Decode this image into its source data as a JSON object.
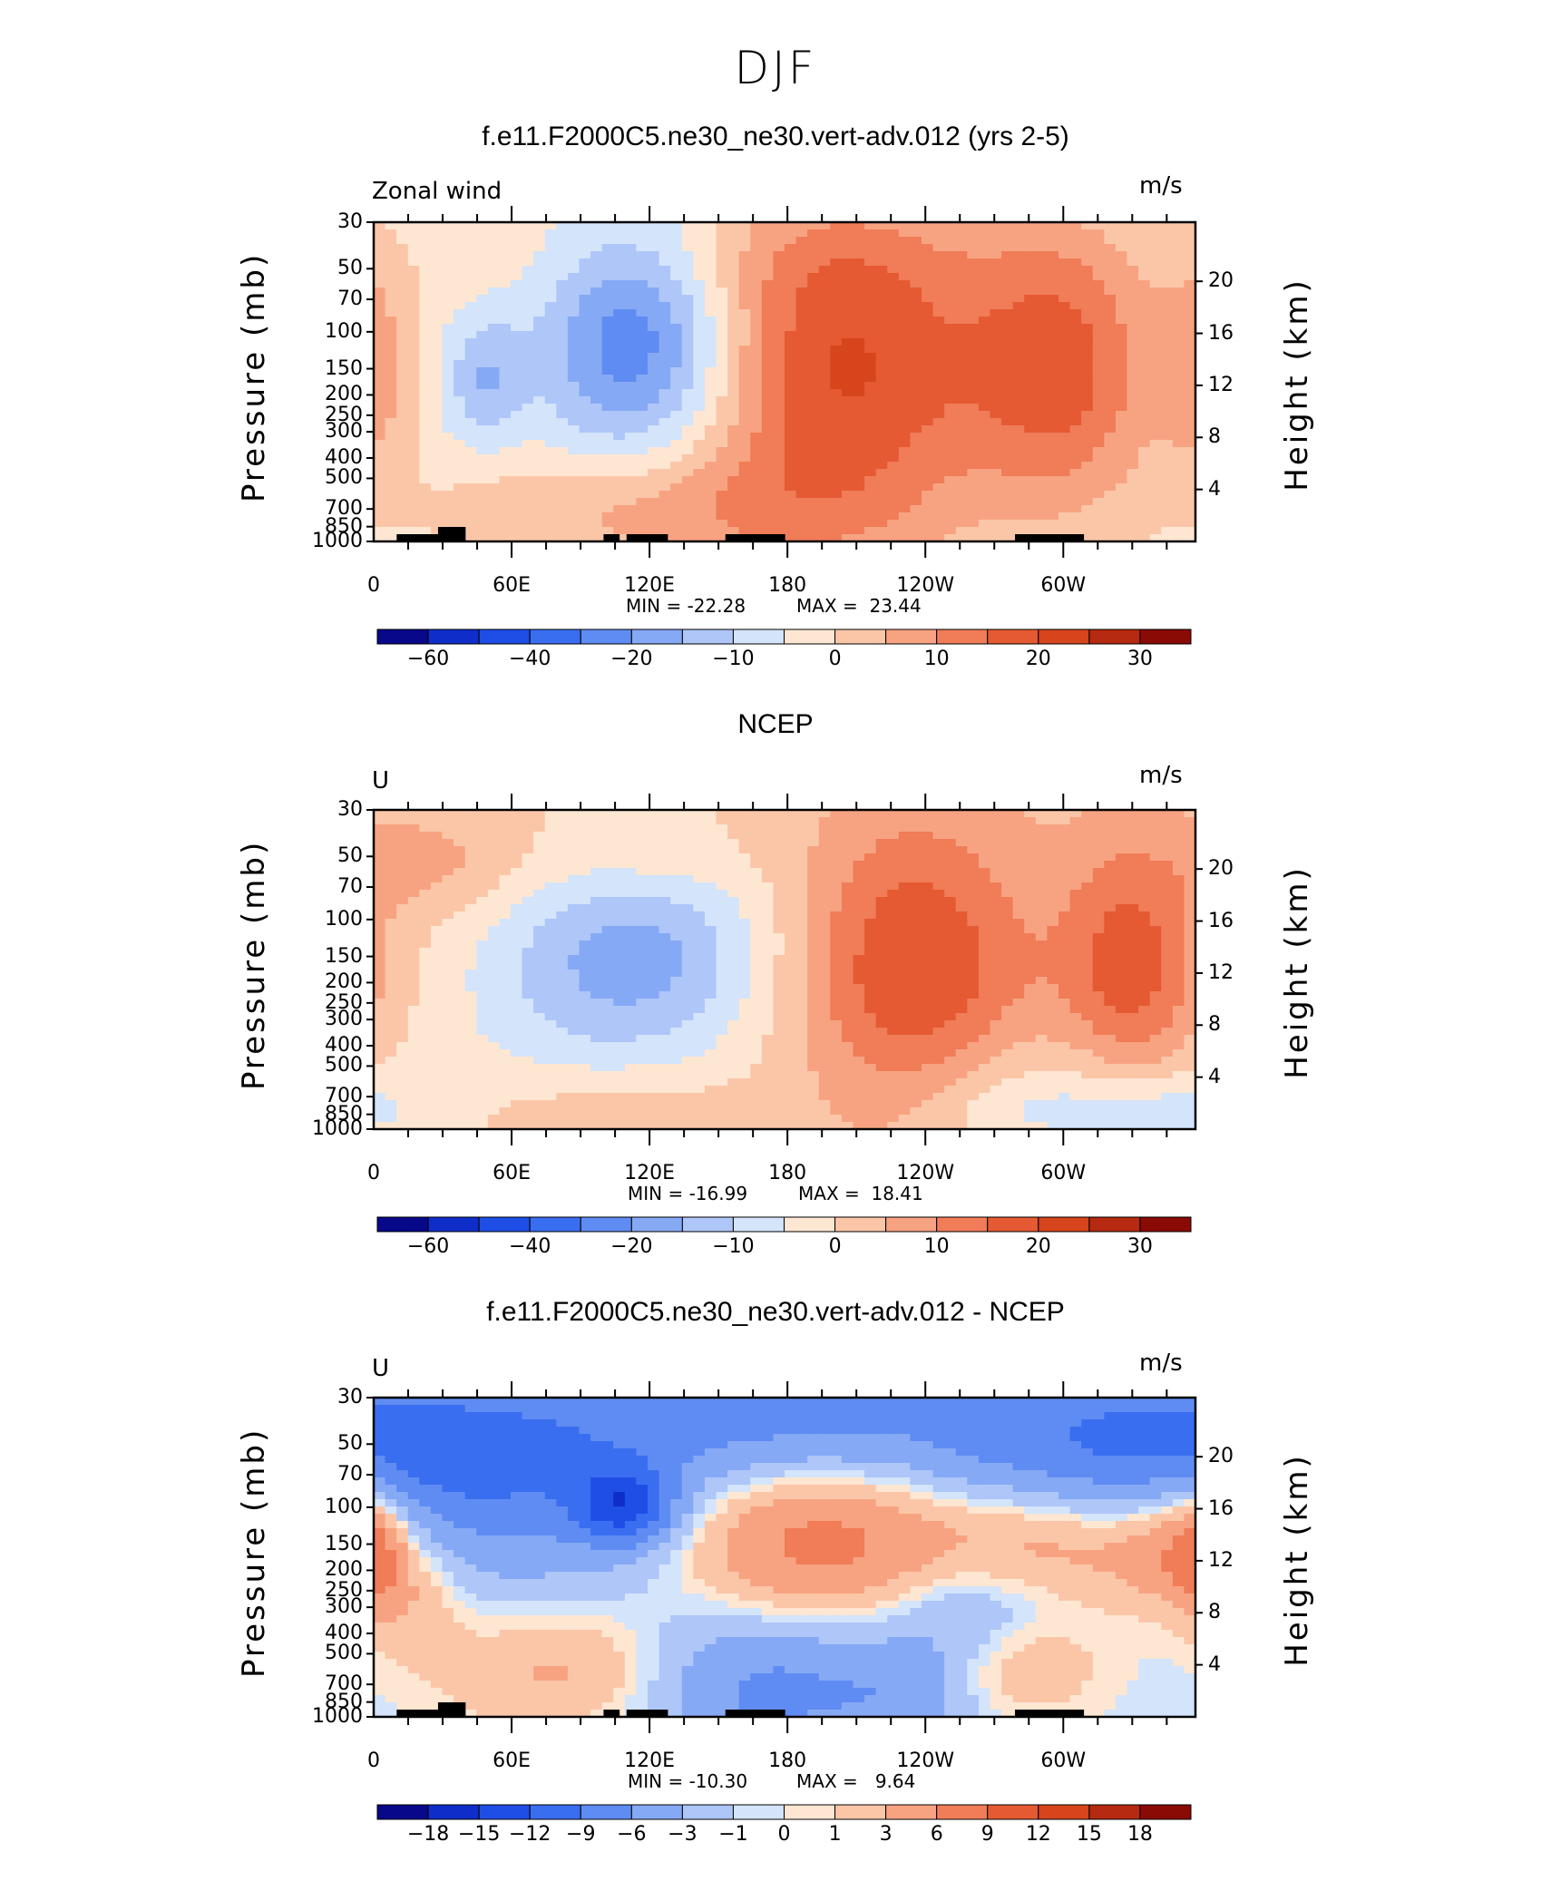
{
  "figure": {
    "title": "DJF",
    "colors": {
      "frame": "#000000",
      "land": "#000000"
    }
  },
  "chart_data": [
    {
      "type": "heatmap",
      "title": "f.e11.F2000C5.ne30_ne30.vert-adv.012 (yrs 2-5)",
      "left_label": "Zonal wind",
      "units": "m/s",
      "ylabel": "Pressure (mb)",
      "ylabel_right": "Height (km)",
      "xlim": [
        0,
        357.5
      ],
      "xticks": [
        {
          "lon": 0,
          "label": "0"
        },
        {
          "lon": 60,
          "label": "60E"
        },
        {
          "lon": 120,
          "label": "120E"
        },
        {
          "lon": 180,
          "label": "180"
        },
        {
          "lon": 240,
          "label": "120W"
        },
        {
          "lon": 300,
          "label": "60W"
        }
      ],
      "yticks": [
        "30",
        "50",
        "70",
        "100",
        "150",
        "200",
        "250",
        "300",
        "400",
        "500",
        "700",
        "850",
        "1000"
      ],
      "right_ticks": [
        "20",
        "16",
        "12",
        "8",
        "4"
      ],
      "min_label": "MIN = -22.28",
      "max_label": "MAX =  23.44",
      "min": -22.28,
      "max": 23.44,
      "colorbar": {
        "levels": [
          -70,
          -60,
          -50,
          -40,
          -30,
          -20,
          -15,
          -10,
          -5,
          0,
          5,
          10,
          15,
          20,
          25,
          30
        ],
        "labels": [
          "-60",
          "-40",
          "-20",
          "-10",
          "0",
          "10",
          "20",
          "30"
        ],
        "colors": [
          "#08088a",
          "#0f2ec9",
          "#1f4ee6",
          "#3a6ef0",
          "#5f8cf2",
          "#86a9f5",
          "#aec6f8",
          "#d3e4fb",
          "#fde6d2",
          "#fbc6a8",
          "#f7a381",
          "#f07c58",
          "#e55a32",
          "#d6451c",
          "#b52a10",
          "#8a0a06"
        ]
      },
      "background": -3,
      "features": [
        {
          "lon": 205,
          "p": 150,
          "w": 45,
          "h": 1.3,
          "amp": 23.44
        },
        {
          "lon": 300,
          "p": 150,
          "w": 30,
          "h": 1.1,
          "amp": 19.0
        },
        {
          "lon": 0,
          "p": 150,
          "w": 12,
          "h": 0.8,
          "amp": 10.0
        },
        {
          "lon": 115,
          "p": 110,
          "w": 30,
          "h": 0.9,
          "amp": -22.28
        },
        {
          "lon": 48,
          "p": 170,
          "w": 12,
          "h": 0.5,
          "amp": -11.0
        },
        {
          "lon": 100,
          "p": 720,
          "w": 55,
          "h": 0.45,
          "amp": 8.0
        },
        {
          "lon": 150,
          "p": 45,
          "w": 110,
          "h": 0.45,
          "amp": 3.0
        },
        {
          "lon": 175,
          "p": 750,
          "w": 50,
          "h": 0.55,
          "amp": 4.5
        }
      ]
    },
    {
      "type": "heatmap",
      "title": "NCEP",
      "left_label": "U",
      "units": "m/s",
      "ylabel": "Pressure (mb)",
      "ylabel_right": "Height (km)",
      "xlim": [
        0,
        357.5
      ],
      "xticks": [
        {
          "lon": 0,
          "label": "0"
        },
        {
          "lon": 60,
          "label": "60E"
        },
        {
          "lon": 120,
          "label": "120E"
        },
        {
          "lon": 180,
          "label": "180"
        },
        {
          "lon": 240,
          "label": "120W"
        },
        {
          "lon": 300,
          "label": "60W"
        }
      ],
      "yticks": [
        "30",
        "50",
        "70",
        "100",
        "150",
        "200",
        "250",
        "300",
        "400",
        "500",
        "700",
        "850",
        "1000"
      ],
      "right_ticks": [
        "20",
        "16",
        "12",
        "8",
        "4"
      ],
      "min_label": "MIN = -16.99",
      "max_label": "MAX =  18.41",
      "min": -16.99,
      "max": 18.41,
      "colorbar": {
        "levels": [
          -70,
          -60,
          -50,
          -40,
          -30,
          -20,
          -15,
          -10,
          -5,
          0,
          5,
          10,
          15,
          20,
          25,
          30
        ],
        "labels": [
          "-60",
          "-40",
          "-20",
          "-10",
          "0",
          "10",
          "20",
          "30"
        ],
        "colors": [
          "#08088a",
          "#0f2ec9",
          "#1f4ee6",
          "#3a6ef0",
          "#5f8cf2",
          "#86a9f5",
          "#aec6f8",
          "#d3e4fb",
          "#fde6d2",
          "#fbc6a8",
          "#f7a381",
          "#f07c58",
          "#e55a32",
          "#d6451c",
          "#b52a10",
          "#8a0a06"
        ]
      },
      "background": 2,
      "features": [
        {
          "lon": 235,
          "p": 180,
          "w": 35,
          "h": 1.2,
          "amp": 18.41
        },
        {
          "lon": 330,
          "p": 170,
          "w": 22,
          "h": 1.0,
          "amp": 16.0
        },
        {
          "lon": 120,
          "p": 140,
          "w": 40,
          "h": 0.9,
          "amp": -16.99
        },
        {
          "lon": 70,
          "p": 220,
          "w": 40,
          "h": 1.0,
          "amp": -6.0
        },
        {
          "lon": 290,
          "p": 600,
          "w": 60,
          "h": 0.5,
          "amp": -6.0
        },
        {
          "lon": 270,
          "p": 880,
          "w": 30,
          "h": 0.3,
          "amp": -5.0
        },
        {
          "lon": 340,
          "p": 820,
          "w": 30,
          "h": 0.3,
          "amp": -9.0
        },
        {
          "lon": 30,
          "p": 55,
          "w": 28,
          "h": 0.4,
          "amp": 6.0
        },
        {
          "lon": 120,
          "p": 55,
          "w": 30,
          "h": 0.4,
          "amp": 5.0
        },
        {
          "lon": 100,
          "p": 760,
          "w": 40,
          "h": 0.3,
          "amp": 4.0
        }
      ]
    },
    {
      "type": "heatmap",
      "title": "f.e11.F2000C5.ne30_ne30.vert-adv.012 - NCEP",
      "left_label": "U",
      "units": "m/s",
      "ylabel": "Pressure (mb)",
      "ylabel_right": "Height (km)",
      "xlim": [
        0,
        357.5
      ],
      "xticks": [
        {
          "lon": 0,
          "label": "0"
        },
        {
          "lon": 60,
          "label": "60E"
        },
        {
          "lon": 120,
          "label": "120E"
        },
        {
          "lon": 180,
          "label": "180"
        },
        {
          "lon": 240,
          "label": "120W"
        },
        {
          "lon": 300,
          "label": "60W"
        }
      ],
      "yticks": [
        "30",
        "50",
        "70",
        "100",
        "150",
        "200",
        "250",
        "300",
        "400",
        "500",
        "700",
        "850",
        "1000"
      ],
      "right_ticks": [
        "20",
        "16",
        "12",
        "8",
        "4"
      ],
      "min_label": "MIN = -10.30",
      "max_label": "MAX =   9.64",
      "min": -10.3,
      "max": 9.64,
      "colorbar": {
        "levels": [
          -21,
          -18,
          -15,
          -12,
          -9,
          -6,
          -3,
          -1,
          0,
          1,
          3,
          6,
          9,
          12,
          15,
          18
        ],
        "labels": [
          "-18",
          "-15",
          "-12",
          "-9",
          "-6",
          "-3",
          "-1",
          "0",
          "1",
          "3",
          "6",
          "9",
          "12",
          "15",
          "18"
        ],
        "colors": [
          "#08088a",
          "#0f2ec9",
          "#1f4ee6",
          "#3a6ef0",
          "#5f8cf2",
          "#86a9f5",
          "#aec6f8",
          "#d3e4fb",
          "#fde6d2",
          "#fbc6a8",
          "#f7a381",
          "#f07c58",
          "#e55a32",
          "#d6451c",
          "#b52a10",
          "#8a0a06"
        ]
      },
      "background": -0.5,
      "features": [
        {
          "lon": 190,
          "p": 150,
          "w": 45,
          "h": 0.8,
          "amp": 9.64
        },
        {
          "lon": 290,
          "p": 150,
          "w": 40,
          "h": 0.5,
          "amp": 7.0
        },
        {
          "lon": 350,
          "p": 150,
          "w": 20,
          "h": 0.5,
          "amp": 6.0
        },
        {
          "lon": 0,
          "p": 150,
          "w": 10,
          "h": 0.5,
          "amp": 6.0
        },
        {
          "lon": 60,
          "p": 60,
          "w": 70,
          "h": 0.9,
          "amp": -8.0
        },
        {
          "lon": 300,
          "p": 50,
          "w": 70,
          "h": 0.7,
          "amp": -7.0
        },
        {
          "lon": 180,
          "p": 40,
          "w": 50,
          "h": 0.5,
          "amp": -5.5
        },
        {
          "lon": 110,
          "p": 100,
          "w": 15,
          "h": 0.3,
          "amp": -10.3
        },
        {
          "lon": 170,
          "p": 620,
          "w": 45,
          "h": 0.7,
          "amp": -8.0
        },
        {
          "lon": 260,
          "p": 320,
          "w": 30,
          "h": 0.6,
          "amp": -5.5
        },
        {
          "lon": 90,
          "p": 600,
          "w": 40,
          "h": 0.5,
          "amp": 5.0
        },
        {
          "lon": 280,
          "p": 560,
          "w": 25,
          "h": 0.4,
          "amp": 5.0
        },
        {
          "lon": 20,
          "p": 260,
          "w": 15,
          "h": 0.5,
          "amp": 3.0
        },
        {
          "lon": 230,
          "p": 800,
          "w": 20,
          "h": 0.3,
          "amp": -2.0
        }
      ]
    }
  ]
}
